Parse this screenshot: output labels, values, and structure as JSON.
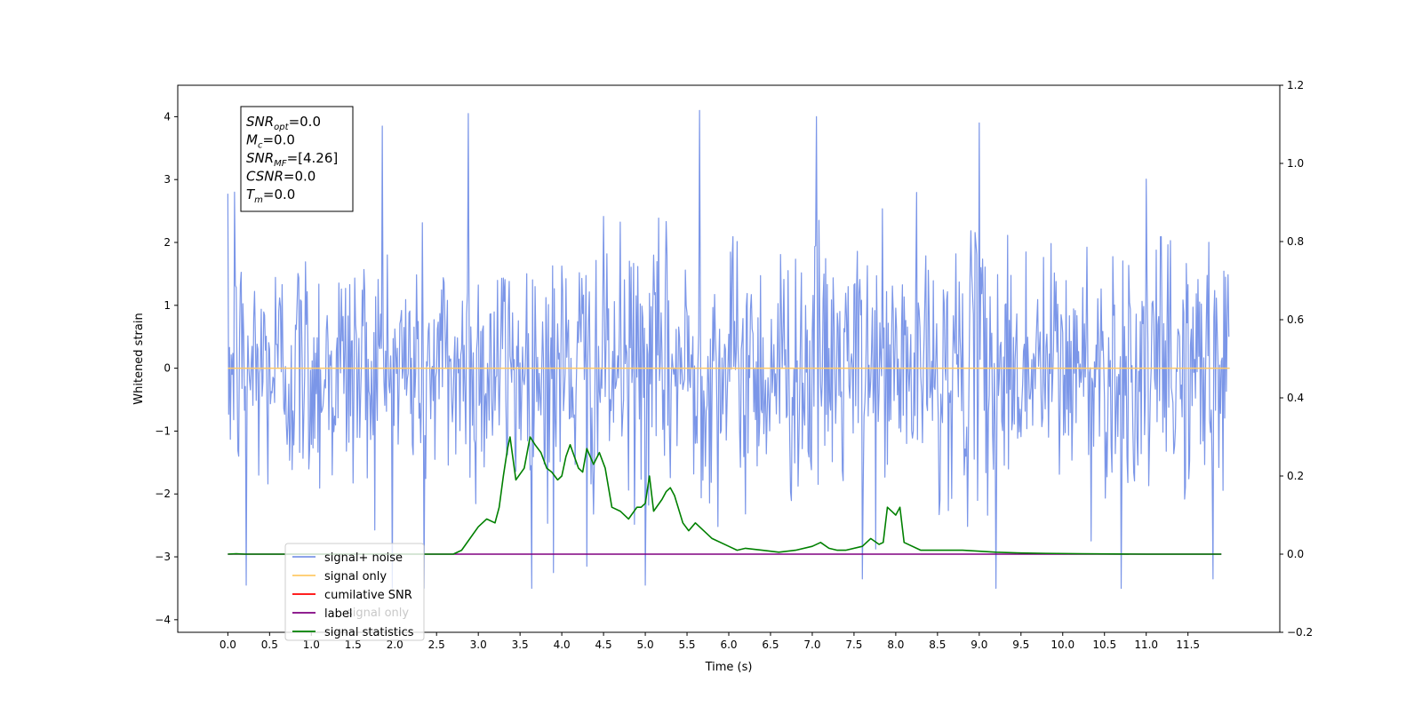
{
  "chart_data": {
    "type": "line",
    "xlabel": "Time (s)",
    "ylabel": "Whitened strain",
    "xlim": [
      -0.6,
      12.6
    ],
    "ylim": [
      -4.2,
      4.5
    ],
    "y2lim": [
      -0.2,
      1.2
    ],
    "x_ticks": [
      "0.0",
      "0.5",
      "1.0",
      "1.5",
      "2.0",
      "2.5",
      "3.0",
      "3.5",
      "4.0",
      "4.5",
      "5.0",
      "5.5",
      "6.0",
      "6.5",
      "7.0",
      "7.5",
      "8.0",
      "8.5",
      "9.0",
      "9.5",
      "10.0",
      "10.5",
      "11.0",
      "11.5"
    ],
    "y_ticks": [
      "4",
      "3",
      "2",
      "1",
      "0",
      "−1",
      "−2",
      "−3",
      "−4"
    ],
    "y2_ticks": [
      "1.2",
      "1.0",
      "0.8",
      "0.6",
      "0.4",
      "0.2",
      "0.0",
      "−0.2"
    ],
    "annotation": [
      {
        "base": "SNR",
        "sub": "opt",
        "rest": "=0.0"
      },
      {
        "base": "M",
        "sub": "c",
        "rest": "=0.0"
      },
      {
        "base": "SNR",
        "sub": "MF",
        "rest": "=[4.26]"
      },
      {
        "base": "CSNR",
        "sub": "",
        "rest": "=0.0"
      },
      {
        "base": "T",
        "sub": "m",
        "rest": "=0.0"
      }
    ],
    "legend": {
      "placement": "lower-left",
      "entries": [
        {
          "label": "signal+ noise",
          "color": "#7b96e8"
        },
        {
          "label": "signal only",
          "color": "#ffc966"
        },
        {
          "label": "cumilative SNR",
          "color": "#ff0000"
        },
        {
          "label": "label",
          "color": "#800080"
        },
        {
          "label": "signal statistics",
          "color": "#008000"
        }
      ],
      "hidden_text": "signal only"
    },
    "series": [
      {
        "name": "signal+ noise",
        "axis": "left",
        "color": "#7b96e8",
        "x_range": [
          0.0,
          11.99
        ],
        "sample_count": 1200,
        "min": -3.5,
        "max": 4.1,
        "spikes": [
          [
            0.08,
            2.8
          ],
          [
            0.22,
            -3.45
          ],
          [
            1.85,
            3.85
          ],
          [
            2.88,
            4.05
          ],
          [
            3.9,
            -3.25
          ],
          [
            4.3,
            -3.15
          ],
          [
            5.0,
            -3.45
          ],
          [
            5.65,
            4.1
          ],
          [
            7.05,
            4.0
          ],
          [
            7.6,
            -3.35
          ],
          [
            9.0,
            3.9
          ],
          [
            9.2,
            -3.5
          ],
          [
            10.7,
            -3.7
          ],
          [
            11.8,
            -3.35
          ],
          [
            2.35,
            -3.55
          ]
        ]
      },
      {
        "name": "signal only",
        "axis": "left",
        "color": "#ffc966",
        "x": [
          0.0,
          12.0
        ],
        "y": [
          0.0,
          0.0
        ]
      },
      {
        "name": "label",
        "axis": "right",
        "color": "#800080",
        "x": [
          0.0,
          11.9
        ],
        "y": [
          0.0,
          0.0
        ]
      },
      {
        "name": "signal statistics",
        "axis": "right",
        "color": "#008000",
        "x": [
          0.0,
          0.1,
          0.2,
          0.3,
          1.0,
          2.0,
          2.5,
          2.7,
          2.8,
          2.9,
          3.0,
          3.1,
          3.2,
          3.25,
          3.3,
          3.35,
          3.38,
          3.45,
          3.55,
          3.62,
          3.68,
          3.75,
          3.82,
          3.88,
          3.95,
          4.0,
          4.05,
          4.1,
          4.2,
          4.25,
          4.3,
          4.38,
          4.45,
          4.52,
          4.6,
          4.7,
          4.8,
          4.9,
          4.95,
          5.0,
          5.05,
          5.1,
          5.2,
          5.25,
          5.3,
          5.35,
          5.45,
          5.52,
          5.6,
          5.8,
          6.0,
          6.1,
          6.2,
          6.4,
          6.6,
          6.8,
          7.0,
          7.1,
          7.2,
          7.3,
          7.4,
          7.6,
          7.7,
          7.8,
          7.85,
          7.9,
          7.95,
          8.0,
          8.05,
          8.1,
          8.3,
          8.6,
          8.8,
          9.2,
          9.5,
          9.8,
          10.2,
          11.0,
          11.9
        ],
        "y": [
          0.0,
          0.001,
          0.0,
          0.0,
          0.0,
          0.0,
          0.0,
          0.0,
          0.01,
          0.04,
          0.07,
          0.09,
          0.08,
          0.12,
          0.2,
          0.27,
          0.3,
          0.19,
          0.22,
          0.3,
          0.28,
          0.26,
          0.22,
          0.21,
          0.19,
          0.2,
          0.25,
          0.28,
          0.22,
          0.21,
          0.27,
          0.23,
          0.26,
          0.22,
          0.12,
          0.11,
          0.09,
          0.12,
          0.12,
          0.13,
          0.2,
          0.11,
          0.14,
          0.16,
          0.17,
          0.15,
          0.08,
          0.06,
          0.08,
          0.04,
          0.02,
          0.01,
          0.015,
          0.01,
          0.005,
          0.01,
          0.02,
          0.03,
          0.015,
          0.01,
          0.01,
          0.02,
          0.04,
          0.025,
          0.03,
          0.12,
          0.11,
          0.1,
          0.12,
          0.03,
          0.01,
          0.01,
          0.01,
          0.005,
          0.003,
          0.002,
          0.001,
          0.0,
          0.0
        ]
      }
    ]
  }
}
